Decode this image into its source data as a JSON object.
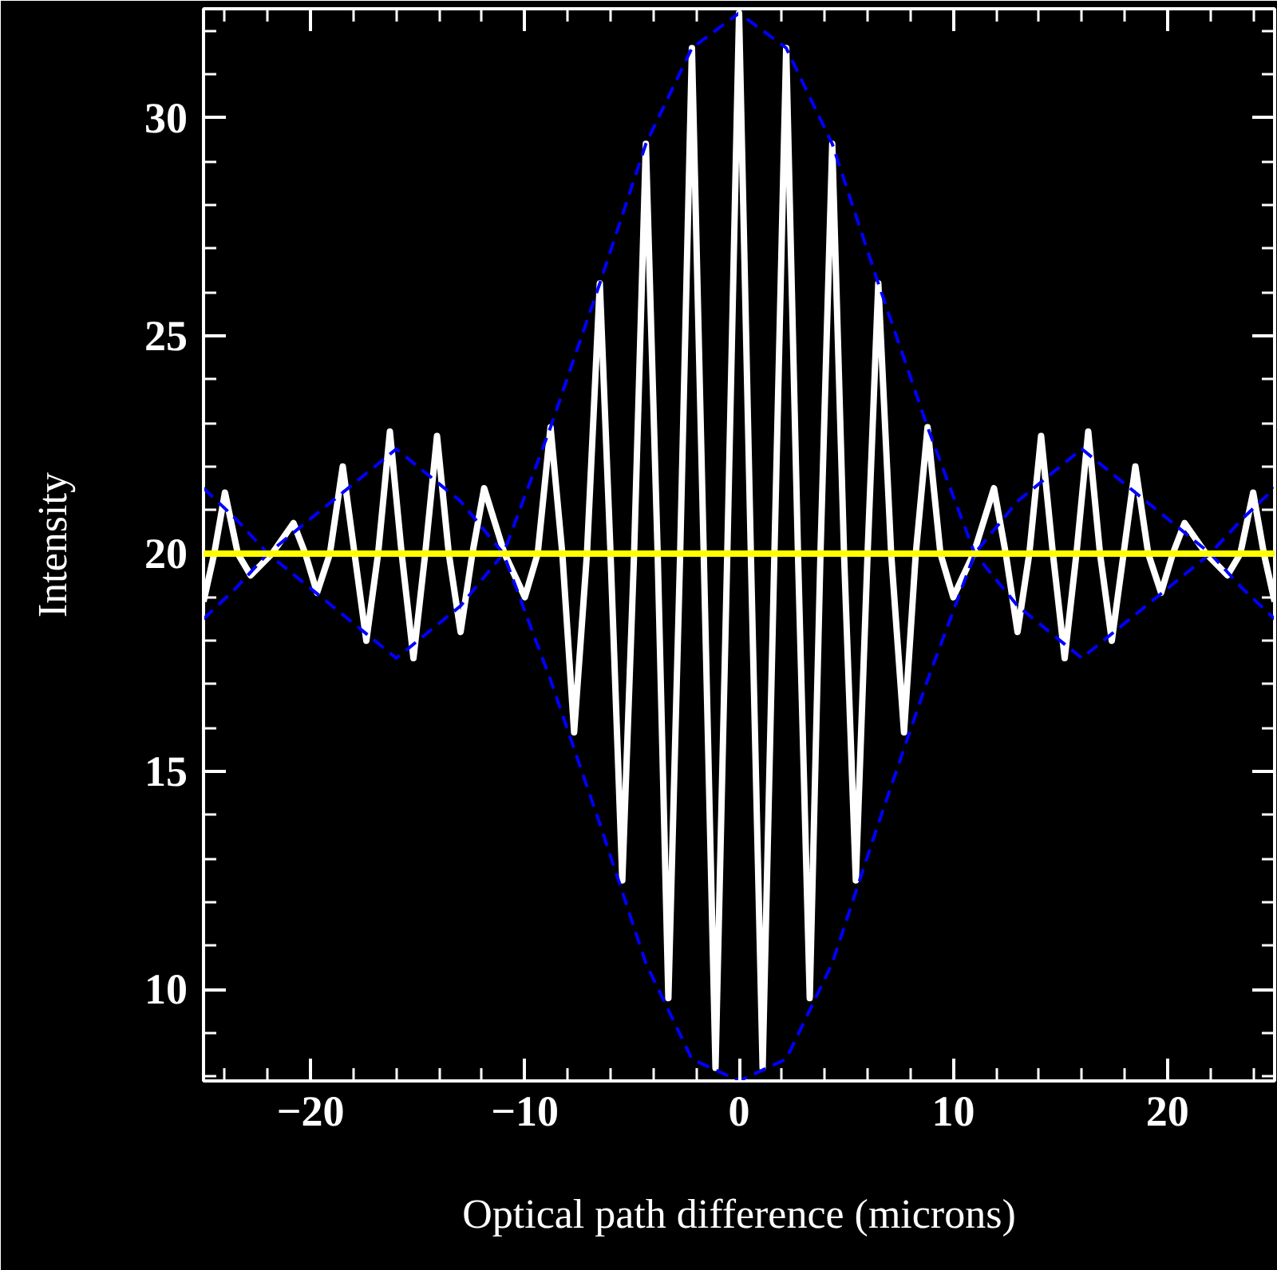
{
  "chart_data": {
    "type": "line",
    "xlabel": "Optical path difference (microns)",
    "ylabel": "Intensity",
    "xlim": [
      -25,
      25
    ],
    "ylim": [
      7.9,
      32.5
    ],
    "xticks": [
      {
        "value": -24,
        "label": null
      },
      {
        "value": -22,
        "label": null
      },
      {
        "value": -20,
        "label": "−20"
      },
      {
        "value": -18,
        "label": null
      },
      {
        "value": -16,
        "label": null
      },
      {
        "value": -14,
        "label": null
      },
      {
        "value": -12,
        "label": null
      },
      {
        "value": -10,
        "label": "−10"
      },
      {
        "value": -8,
        "label": null
      },
      {
        "value": -6,
        "label": null
      },
      {
        "value": -4,
        "label": null
      },
      {
        "value": -2,
        "label": null
      },
      0,
      {
        "value": 2,
        "label": null
      },
      {
        "value": 4,
        "label": null
      },
      {
        "value": 6,
        "label": null
      },
      {
        "value": 8,
        "label": null
      },
      10,
      {
        "value": 12,
        "label": null
      },
      {
        "value": 14,
        "label": null
      },
      {
        "value": 16,
        "label": null
      },
      {
        "value": 18,
        "label": null
      },
      20,
      {
        "value": 22,
        "label": null
      },
      {
        "value": 24,
        "label": null
      }
    ],
    "yticks": [
      {
        "value": 8,
        "label": null
      },
      {
        "value": 9,
        "label": null
      },
      10,
      {
        "value": 11,
        "label": null
      },
      {
        "value": 12,
        "label": null
      },
      {
        "value": 13,
        "label": null
      },
      {
        "value": 14,
        "label": null
      },
      15,
      {
        "value": 16,
        "label": null
      },
      {
        "value": 17,
        "label": null
      },
      {
        "value": 18,
        "label": null
      },
      {
        "value": 19,
        "label": null
      },
      20,
      {
        "value": 21,
        "label": null
      },
      {
        "value": 22,
        "label": null
      },
      {
        "value": 23,
        "label": null
      },
      {
        "value": 24,
        "label": null
      },
      25,
      {
        "value": 26,
        "label": null
      },
      {
        "value": 27,
        "label": null
      },
      {
        "value": 28,
        "label": null
      },
      {
        "value": 29,
        "label": null
      },
      30,
      {
        "value": 31,
        "label": null
      },
      {
        "value": 32,
        "label": null
      }
    ],
    "marker": "none",
    "ref_lines": [
      {
        "axis": "y",
        "value": 20,
        "label": null,
        "color": "#ffff00",
        "line_style": "solid"
      }
    ],
    "series": [
      {
        "color": "#ffffff",
        "line_style": "solid",
        "x": [
          -25,
          -24.5,
          -24.0,
          -23.4,
          -22.8,
          -21.8,
          -20.8,
          -20.25,
          -19.7,
          -19.1,
          -18.5,
          -17.95,
          -17.4,
          -16.85,
          -16.3,
          -15.75,
          -15.2,
          -14.65,
          -14.1,
          -13.55,
          -13.0,
          -12.45,
          -11.9,
          -10.95,
          -10.0,
          -9.4,
          -8.8,
          -8.25,
          -7.7,
          -7.1,
          -6.5,
          -6.0,
          -5.45,
          -4.9,
          -4.35,
          -3.8,
          -3.3,
          -2.75,
          -2.2,
          -1.65,
          -1.1,
          -0.55,
          0,
          0.55,
          1.1,
          1.65,
          2.2,
          2.75,
          3.3,
          3.8,
          4.35,
          4.9,
          5.45,
          6.0,
          6.5,
          7.1,
          7.7,
          8.25,
          8.8,
          9.4,
          10.0,
          10.95,
          11.9,
          12.45,
          13.0,
          13.55,
          14.1,
          14.65,
          15.2,
          15.75,
          16.3,
          16.85,
          17.4,
          17.95,
          18.5,
          19.1,
          19.7,
          20.25,
          20.8,
          21.8,
          22.8,
          23.4,
          24.0,
          24.5,
          25
        ],
        "values": [
          18.9,
          20,
          21.4,
          20,
          19.5,
          20,
          20.7,
          20,
          19.1,
          20,
          22.0,
          20,
          18.0,
          20,
          22.8,
          20,
          17.6,
          20,
          22.7,
          20,
          18.2,
          20,
          21.5,
          20,
          19.0,
          20,
          22.9,
          20,
          15.9,
          20,
          26.2,
          20,
          12.5,
          20,
          29.4,
          20,
          9.8,
          20,
          31.6,
          20,
          8.2,
          20,
          32.4,
          20,
          8.2,
          20,
          31.6,
          20,
          9.8,
          20,
          29.4,
          20,
          12.5,
          20,
          26.2,
          20,
          15.9,
          20,
          22.9,
          20,
          19.0,
          20,
          21.5,
          20,
          18.2,
          20,
          22.7,
          20,
          17.6,
          20,
          22.8,
          20,
          18.0,
          20,
          22.0,
          20,
          19.1,
          20,
          20.7,
          20,
          19.5,
          20,
          21.4,
          20,
          18.9
        ]
      },
      {
        "color": "#0000ff",
        "line_style": "dashed",
        "x": [
          -25,
          -23.5,
          -22,
          -19,
          -16,
          -13,
          -11,
          -8.8,
          -6.5,
          -4.35,
          -2.2,
          0,
          2.2,
          4.35,
          6.5,
          8.8,
          11,
          13,
          16,
          19,
          22,
          23.5,
          25
        ],
        "values": [
          21.5,
          20.8,
          20,
          18.8,
          17.6,
          18.8,
          20,
          22.9,
          26.2,
          29.4,
          31.6,
          32.4,
          31.6,
          29.4,
          26.2,
          22.9,
          20,
          18.8,
          17.6,
          18.8,
          20,
          20.8,
          21.5
        ]
      },
      {
        "color": "#0000ff",
        "line_style": "dashed",
        "x": [
          -25,
          -23.5,
          -22,
          -19,
          -16,
          -13,
          -11,
          -8.8,
          -6.5,
          -4.35,
          -2.2,
          0,
          2.2,
          4.35,
          6.5,
          8.8,
          11,
          13,
          16,
          19,
          22,
          23.5,
          25
        ],
        "values": [
          18.5,
          19.2,
          20,
          21.2,
          22.4,
          21.2,
          20,
          17.1,
          13.8,
          10.6,
          8.4,
          7.9,
          8.4,
          10.6,
          13.8,
          17.1,
          20,
          21.2,
          22.4,
          21.2,
          20,
          19.2,
          18.5
        ]
      }
    ]
  }
}
